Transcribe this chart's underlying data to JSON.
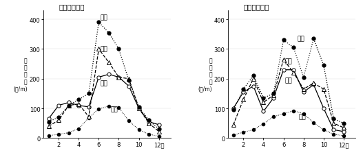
{
  "months": [
    1,
    2,
    3,
    4,
    5,
    6,
    7,
    8,
    9,
    10,
    11,
    12
  ],
  "chart1": {
    "title": "（１）大分川",
    "rainfall": [
      55,
      70,
      110,
      130,
      150,
      390,
      355,
      300,
      195,
      105,
      60,
      30
    ],
    "supply": [
      40,
      60,
      110,
      115,
      72,
      300,
      255,
      205,
      200,
      100,
      50,
      22
    ],
    "runoff": [
      65,
      110,
      120,
      110,
      105,
      205,
      215,
      205,
      175,
      100,
      55,
      45
    ],
    "evapo": [
      8,
      13,
      18,
      32,
      68,
      98,
      108,
      102,
      58,
      28,
      13,
      6
    ]
  },
  "chart2": {
    "title": "（２）山国川",
    "rainfall": [
      95,
      165,
      210,
      135,
      150,
      330,
      305,
      205,
      335,
      245,
      65,
      50
    ],
    "supply": [
      45,
      130,
      200,
      120,
      145,
      265,
      220,
      165,
      185,
      165,
      50,
      35
    ],
    "runoff": [
      100,
      155,
      175,
      90,
      135,
      230,
      230,
      155,
      180,
      100,
      28,
      22
    ],
    "evapo": [
      10,
      20,
      28,
      48,
      72,
      82,
      92,
      82,
      52,
      28,
      13,
      8
    ]
  },
  "ylabel_lines": [
    "水",
    "収",
    "支",
    "量",
    "(㎜/m)"
  ],
  "ylim": [
    0,
    430
  ],
  "yticks": [
    0,
    100,
    200,
    300,
    400
  ],
  "xticks": [
    2,
    4,
    6,
    8,
    10,
    12
  ],
  "label_rainfall": "降水",
  "label_supply": "供給",
  "label_runoff": "流出",
  "label_evapo": "蒸発",
  "bg_color": "#ffffff"
}
